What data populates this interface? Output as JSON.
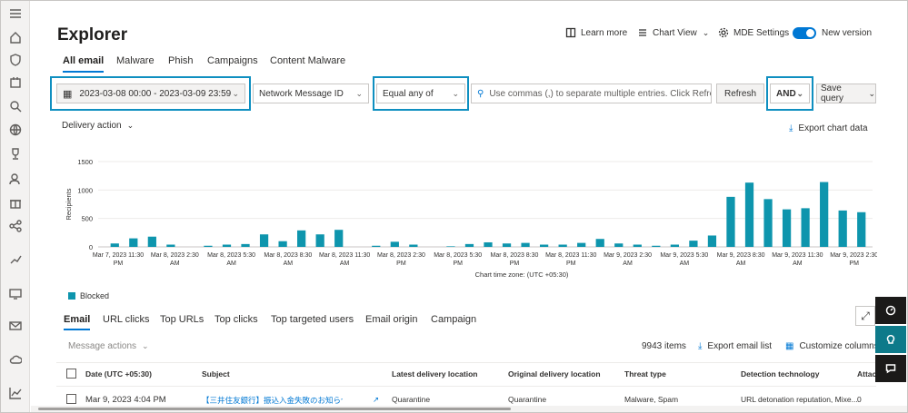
{
  "rail_icons": [
    "menu-icon",
    "home-icon",
    "shield-icon",
    "incidents-icon",
    "hunting-icon",
    "globe-icon",
    "trophy-icon",
    "user-settings-icon",
    "gift-icon",
    "share-icon",
    "report-icon",
    "devices-icon",
    "mail-icon",
    "cloud-icon",
    "chart-icon"
  ],
  "page": {
    "title": "Explorer"
  },
  "topbar": {
    "learn_more": "Learn more",
    "chart_view": "Chart View",
    "mde_settings": "MDE Settings",
    "new_version": "New version"
  },
  "pivots": [
    "All email",
    "Malware",
    "Phish",
    "Campaigns",
    "Content Malware"
  ],
  "filter": {
    "date_range": "2023-03-08 00:00 - 2023-03-09 23:59",
    "property": "Network Message ID",
    "operator": "Equal any of",
    "search_placeholder": "Use commas (,) to separate multiple entries. Click Refresh ...",
    "refresh": "Refresh",
    "logic": "AND",
    "save_query": "Save query"
  },
  "chart_header": {
    "group_by": "Delivery action",
    "export": "Export chart data"
  },
  "chart_data": {
    "type": "bar",
    "ylabel": "Recipients",
    "xlabel": "Chart time zone: (UTC +05:30)",
    "yticks": [
      0,
      500,
      1000,
      1500
    ],
    "ylim": [
      0,
      1500
    ],
    "xtick_labels": [
      [
        "Mar 7, 2023 11:30",
        "PM"
      ],
      [
        "Mar 8, 2023 2:30",
        "AM"
      ],
      [
        "Mar 8, 2023 5:30",
        "AM"
      ],
      [
        "Mar 8, 2023 8:30",
        "AM"
      ],
      [
        "Mar 8, 2023 11:30",
        "AM"
      ],
      [
        "Mar 8, 2023 2:30",
        "PM"
      ],
      [
        "Mar 8, 2023 5:30",
        "PM"
      ],
      [
        "Mar 8, 2023 8:30",
        "PM"
      ],
      [
        "Mar 8, 2023 11:30",
        "PM"
      ],
      [
        "Mar 9, 2023 2:30",
        "AM"
      ],
      [
        "Mar 9, 2023 5:30",
        "AM"
      ],
      [
        "Mar 9, 2023 8:30",
        "AM"
      ],
      [
        "Mar 9, 2023 11:30",
        "AM"
      ],
      [
        "Mar 9, 2023 2:30",
        "PM"
      ]
    ],
    "series": [
      {
        "name": "Blocked",
        "color": "#0e95ad",
        "values": [
          60,
          150,
          180,
          40,
          0,
          20,
          40,
          50,
          220,
          100,
          290,
          220,
          300,
          0,
          20,
          90,
          40,
          0,
          10,
          50,
          80,
          60,
          70,
          40,
          40,
          70,
          140,
          60,
          40,
          20,
          40,
          110,
          200,
          880,
          1130,
          840,
          660,
          680,
          1140,
          640,
          610
        ]
      }
    ]
  },
  "legend": {
    "blocked": "Blocked"
  },
  "lower_tabs": [
    "Email",
    "URL clicks",
    "Top URLs",
    "Top clicks",
    "Top targeted users",
    "Email origin",
    "Campaign"
  ],
  "list_toolbar": {
    "message_actions": "Message actions",
    "count": "9943 items",
    "export": "Export email list",
    "customize": "Customize columns"
  },
  "table": {
    "headers": [
      "Date (UTC +05:30)",
      "Subject",
      "Latest delivery location",
      "Original delivery location",
      "Threat type",
      "Detection technology",
      "Attach"
    ],
    "row": {
      "date": "Mar 9, 2023 4:04 PM",
      "subject": "【三井住友銀行】振込入金失敗のお知らせ",
      "latest": "Quarantine",
      "original": "Quarantine",
      "threat": "Malware, Spam",
      "detection": "URL detonation reputation, Mixe...",
      "attach": "0"
    }
  }
}
